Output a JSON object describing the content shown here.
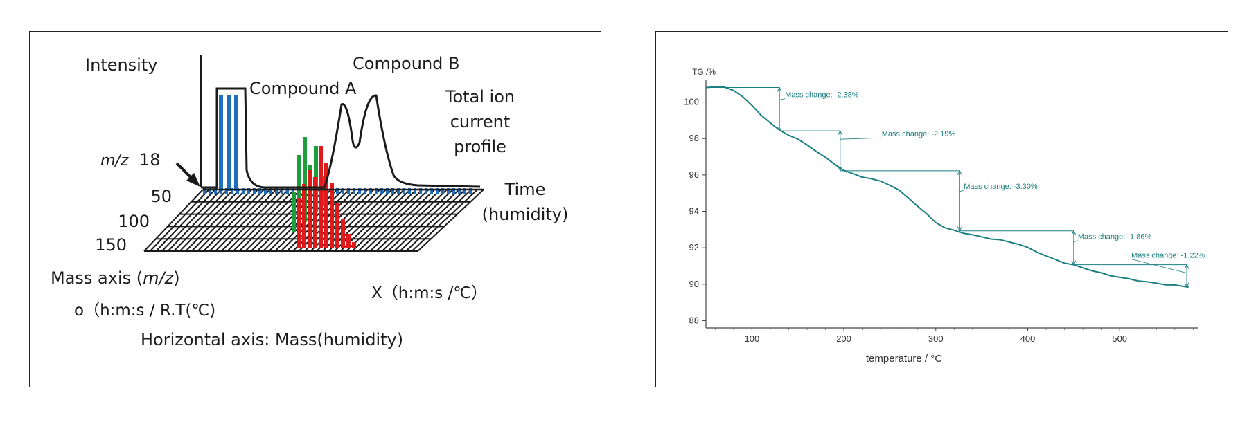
{
  "left_diagram": {
    "intensity_label": "Intensity",
    "compound_a_label": "Compound A",
    "compound_b_label": "Compound B",
    "tic_line1": "Total ion",
    "tic_line2": "current",
    "tic_line3": "profile",
    "mz_prefix": "m/z",
    "mz_value": "18",
    "mass_ticks": [
      "50",
      "100",
      "150"
    ],
    "time_label": "Time",
    "humidity_label": "(humidity)",
    "mass_axis_prefix": "Mass axis (",
    "mass_axis_italic": "m/z",
    "mass_axis_suffix": ")",
    "o_axis_label": "o（h:m:s / R.T(℃)",
    "x_axis_label": "X（h:m:s /℃）",
    "horizontal_axis_label": "Horizontal axis: Mass(humidity)",
    "colors": {
      "compound_a_bars": "#1f6fbf",
      "green_bars": "#1e9e3a",
      "red_bars": "#e0191b",
      "outline": "#1a1a1a"
    }
  },
  "chart_data": {
    "type": "line",
    "title": "",
    "ylabel": "TG /%",
    "xlabel": "temperature / °C",
    "xlim": [
      50,
      585
    ],
    "ylim": [
      87.6,
      101.2
    ],
    "x_ticks": [
      100,
      200,
      300,
      400,
      500
    ],
    "y_ticks": [
      88,
      90,
      92,
      94,
      96,
      98,
      100
    ],
    "grid": false,
    "line_color": "#1a7f80",
    "series": [
      {
        "x": [
          50,
          60,
          70,
          80,
          90,
          100,
          110,
          120,
          130,
          140,
          150,
          160,
          170,
          180,
          190,
          200,
          210,
          220,
          230,
          240,
          250,
          260,
          270,
          280,
          290,
          300,
          310,
          320,
          330,
          340,
          350,
          360,
          370,
          380,
          390,
          400,
          410,
          420,
          430,
          440,
          450,
          460,
          470,
          480,
          490,
          500,
          510,
          520,
          530,
          540,
          550,
          560,
          570,
          575
        ],
        "y": [
          100.8,
          100.85,
          100.8,
          100.65,
          100.3,
          99.8,
          99.3,
          98.85,
          98.45,
          98.2,
          97.95,
          97.65,
          97.3,
          96.95,
          96.6,
          96.25,
          96.05,
          95.9,
          95.78,
          95.65,
          95.45,
          95.15,
          94.75,
          94.3,
          93.85,
          93.4,
          93.1,
          92.95,
          92.82,
          92.7,
          92.6,
          92.5,
          92.42,
          92.33,
          92.2,
          92.0,
          91.78,
          91.55,
          91.35,
          91.18,
          91.05,
          90.9,
          90.75,
          90.6,
          90.48,
          90.38,
          90.28,
          90.2,
          90.12,
          90.05,
          89.99,
          89.94,
          89.88,
          89.85
        ]
      }
    ],
    "annotations": [
      {
        "label": "Mass change: -2.38%",
        "from_x": 50,
        "to_x": 130,
        "y_top": 100.8,
        "y_bottom": 98.42
      },
      {
        "label": "Mass change: -2.19%",
        "from_x": 130,
        "to_x": 196,
        "y_top": 98.42,
        "y_bottom": 96.23
      },
      {
        "label": "Mass change: -3.30%",
        "from_x": 196,
        "to_x": 326,
        "y_top": 96.23,
        "y_bottom": 92.93
      },
      {
        "label": "Mass change: -1.86%",
        "from_x": 326,
        "to_x": 450,
        "y_top": 92.93,
        "y_bottom": 91.07
      },
      {
        "label": "Mass change: -1.22%",
        "from_x": 450,
        "to_x": 573,
        "y_top": 91.07,
        "y_bottom": 89.85
      }
    ]
  }
}
